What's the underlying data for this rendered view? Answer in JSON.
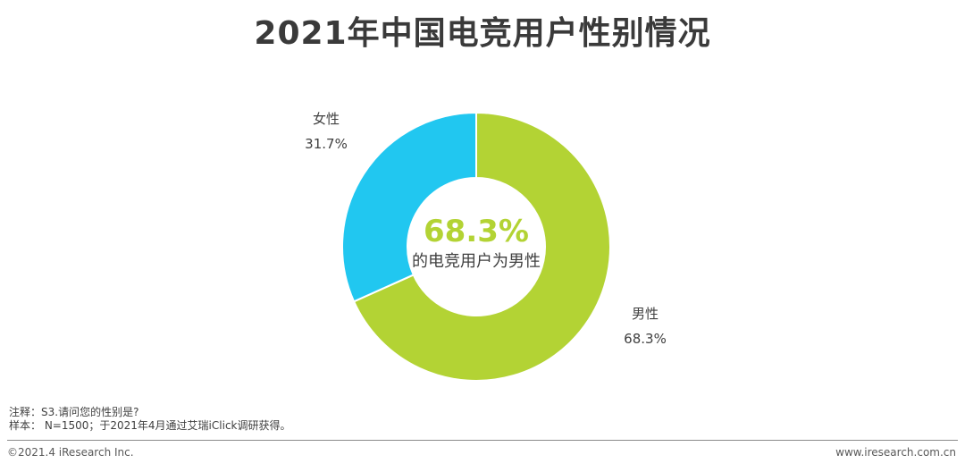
{
  "title": "2021年中国电竞用户性别情况",
  "notes": {
    "note": "注释：S3.请问您的性别是?",
    "sample": "样本： N=1500；于2021年4月通过艾瑞iClick调研获得。"
  },
  "footer": {
    "copyright": "©2021.4 iResearch Inc.",
    "website": "www.iresearch.com.cn"
  },
  "colors": {
    "male": "#b3d334",
    "female": "#21c7f0",
    "title": "#3a3a3a",
    "label": "#404040"
  },
  "chart_data": {
    "type": "pie",
    "style": "donut",
    "slices": [
      {
        "label": "男性",
        "value": 68.3,
        "display": "68.3%"
      },
      {
        "label": "女性",
        "value": 31.7,
        "display": "31.7%"
      }
    ],
    "center_value": "68.3%",
    "center_text": "的电竞用户为男性"
  }
}
